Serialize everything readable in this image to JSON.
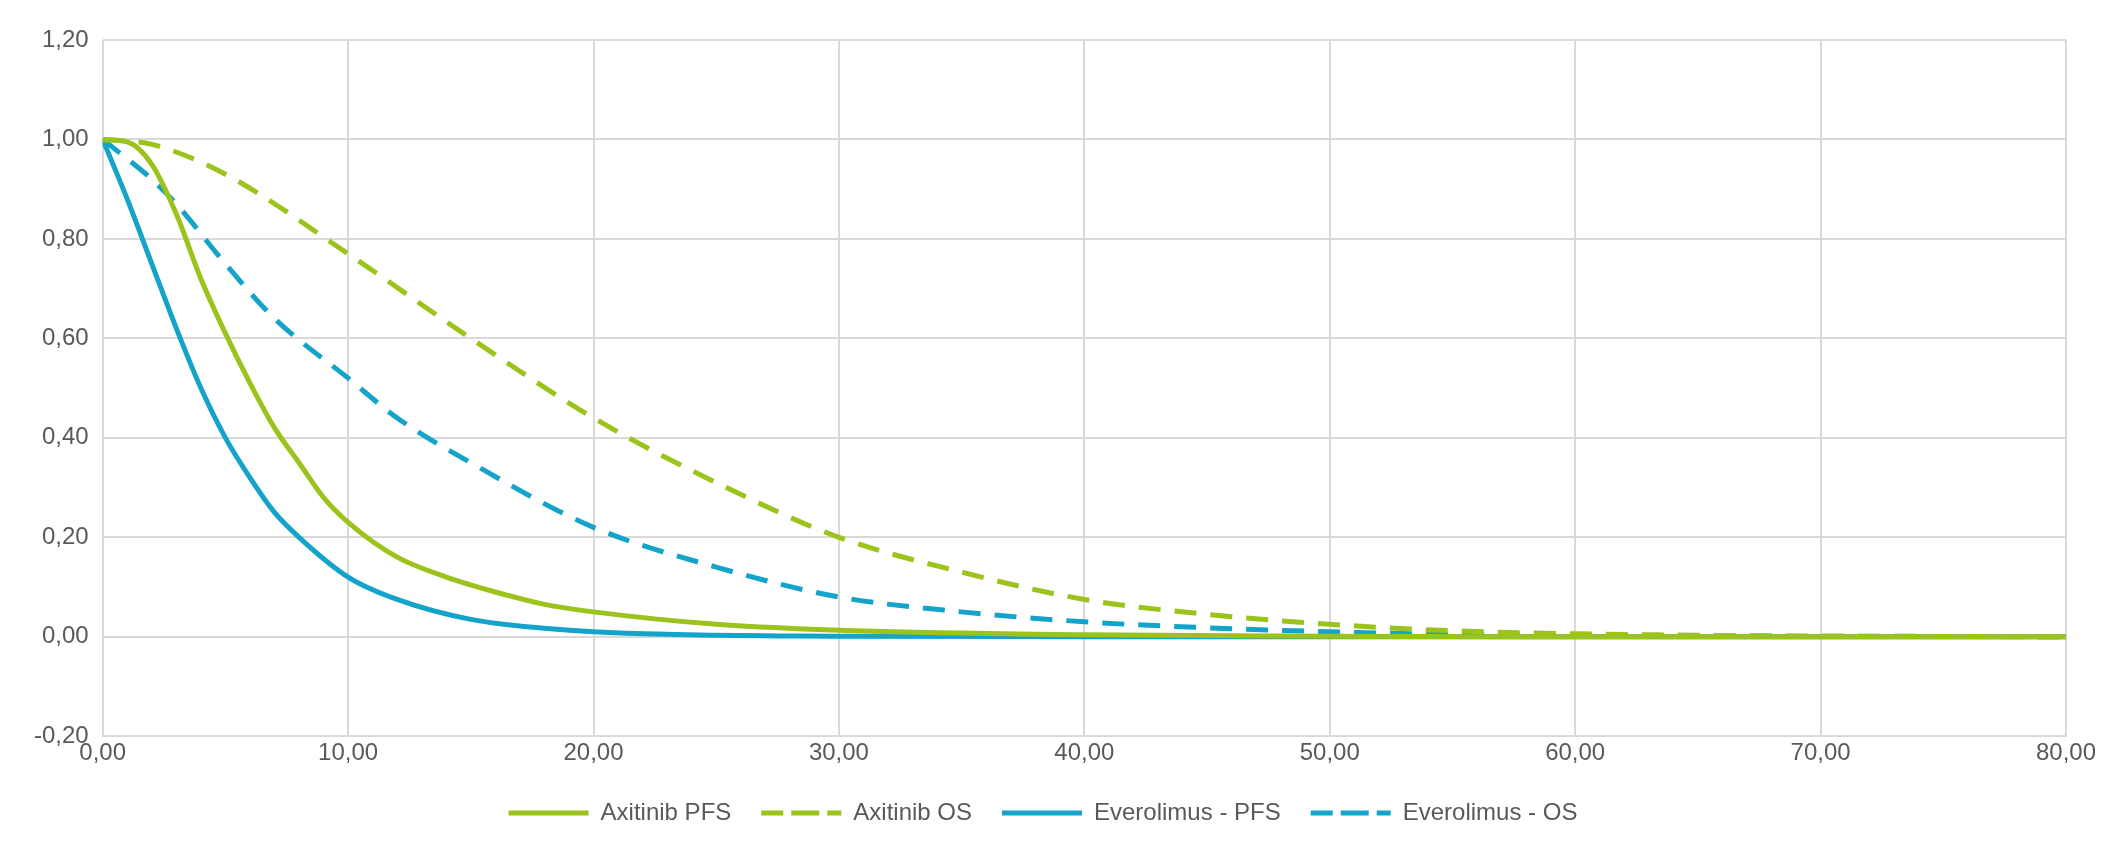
{
  "chart_data": {
    "type": "line",
    "xlim": [
      0,
      80
    ],
    "ylim": [
      -0.2,
      1.2
    ],
    "xticks": [
      {
        "value": 0,
        "label": "0,00"
      },
      {
        "value": 10,
        "label": "10,00"
      },
      {
        "value": 20,
        "label": "20,00"
      },
      {
        "value": 30,
        "label": "30,00"
      },
      {
        "value": 40,
        "label": "40,00"
      },
      {
        "value": 50,
        "label": "50,00"
      },
      {
        "value": 60,
        "label": "60,00"
      },
      {
        "value": 70,
        "label": "70,00"
      },
      {
        "value": 80,
        "label": "80,00"
      }
    ],
    "yticks": [
      {
        "value": -0.2,
        "label": "-0,20"
      },
      {
        "value": 0,
        "label": "0,00"
      },
      {
        "value": 0.2,
        "label": "0,20"
      },
      {
        "value": 0.4,
        "label": "0,40"
      },
      {
        "value": 0.6,
        "label": "0,60"
      },
      {
        "value": 0.8,
        "label": "0,80"
      },
      {
        "value": 1,
        "label": "1,00"
      },
      {
        "value": 1.2,
        "label": "1,20"
      }
    ],
    "grid": true,
    "legend": "bottom",
    "marker": "none",
    "series": [
      {
        "name": "Axitinib PFS",
        "color": "#9cc31c",
        "line_style": "solid",
        "x": [
          0,
          1,
          2,
          3,
          4,
          5,
          6,
          7,
          8,
          9,
          10,
          12,
          14,
          16,
          18,
          20,
          25,
          30,
          40,
          50,
          60,
          80
        ],
        "values": [
          1.0,
          0.995,
          0.95,
          0.85,
          0.72,
          0.61,
          0.51,
          0.42,
          0.35,
          0.28,
          0.23,
          0.16,
          0.12,
          0.09,
          0.065,
          0.05,
          0.025,
          0.013,
          0.004,
          0.001,
          0,
          0
        ]
      },
      {
        "name": "Axitinib OS",
        "color": "#9cc31c",
        "line_style": "dashed",
        "x": [
          0,
          2,
          5,
          10,
          15,
          20,
          25,
          30,
          35,
          40,
          45,
          50,
          55,
          60,
          65,
          70,
          80
        ],
        "values": [
          1.0,
          0.99,
          0.93,
          0.77,
          0.6,
          0.44,
          0.31,
          0.2,
          0.13,
          0.075,
          0.045,
          0.025,
          0.012,
          0.006,
          0.003,
          0.001,
          0
        ]
      },
      {
        "name": "Everolimus - PFS",
        "color": "#14a3c9",
        "line_style": "solid",
        "x": [
          0,
          1,
          2,
          3,
          4,
          5,
          6,
          7,
          8,
          10,
          12,
          15,
          20,
          30,
          40,
          80
        ],
        "values": [
          1.0,
          0.88,
          0.75,
          0.62,
          0.5,
          0.4,
          0.32,
          0.25,
          0.2,
          0.12,
          0.075,
          0.035,
          0.01,
          0.001,
          0,
          0
        ]
      },
      {
        "name": "Everolimus - OS",
        "color": "#14a3c9",
        "line_style": "dashed",
        "x": [
          0,
          2,
          3,
          5,
          7,
          10,
          12,
          15,
          20,
          25,
          30,
          35,
          40,
          45,
          50,
          55,
          80
        ],
        "values": [
          1.0,
          0.92,
          0.87,
          0.75,
          0.64,
          0.52,
          0.44,
          0.35,
          0.22,
          0.14,
          0.08,
          0.05,
          0.03,
          0.018,
          0.01,
          0.005,
          0
        ]
      }
    ]
  }
}
